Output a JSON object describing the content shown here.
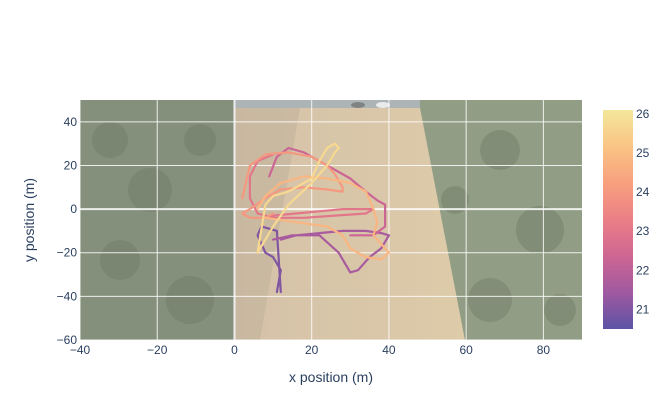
{
  "chart_data": {
    "type": "line",
    "title": "",
    "xlabel": "x position (m)",
    "ylabel": "y position (m)",
    "xlim": [
      -40,
      90
    ],
    "ylim": [
      -60,
      50
    ],
    "xticks": [
      -40,
      -20,
      0,
      20,
      40,
      60,
      80
    ],
    "yticks": [
      40,
      20,
      0,
      -20,
      -40,
      -60
    ],
    "grid": true,
    "background": "aerial photo of a field bordered by trees",
    "colorbar": {
      "ticks": [
        26,
        25,
        24,
        23,
        22,
        21
      ],
      "range": [
        20.5,
        26.1
      ],
      "colors": [
        "#5c53a5",
        "#a059a0",
        "#ce6693",
        "#eb7f86",
        "#f8a07e",
        "#fac484",
        "#f3e79b"
      ],
      "placement": "right"
    },
    "series": [
      {
        "color_value": 21.0,
        "x": [
          11,
          12,
          10,
          8,
          6,
          7,
          9,
          11,
          12
        ],
        "y": [
          -38,
          -28,
          -22,
          -20,
          -12,
          -8,
          -9,
          -10,
          -38
        ]
      },
      {
        "color_value": 21.6,
        "x": [
          12,
          16,
          22,
          28,
          34,
          38,
          40,
          38,
          35,
          32,
          30,
          27,
          22,
          15,
          10
        ],
        "y": [
          -14,
          -12,
          -11,
          -10,
          -10,
          -11,
          -12,
          -18,
          -22,
          -28,
          -29,
          -20,
          -12,
          -12,
          -14
        ]
      },
      {
        "color_value": 22.3,
        "x": [
          9,
          11,
          14,
          18,
          22,
          26,
          30,
          34,
          37,
          39,
          39,
          36,
          30
        ],
        "y": [
          15,
          24,
          28,
          26,
          22,
          18,
          14,
          8,
          4,
          2,
          -8,
          -12,
          -12
        ]
      },
      {
        "color_value": 23.0,
        "x": [
          8,
          10,
          16,
          22,
          28,
          34,
          36,
          34,
          26,
          18,
          10,
          6,
          4,
          4,
          6,
          10
        ],
        "y": [
          -4,
          -3,
          -2,
          -1,
          0,
          0,
          0,
          -2,
          -3,
          -4,
          -4,
          -2,
          5,
          15,
          22,
          25
        ]
      },
      {
        "color_value": 24.0,
        "x": [
          2,
          4,
          8,
          14,
          20,
          24,
          26,
          28,
          28,
          24,
          18,
          12,
          8,
          4,
          2,
          4,
          8,
          10
        ],
        "y": [
          5,
          20,
          25,
          26,
          24,
          20,
          16,
          10,
          8,
          9,
          10,
          9,
          5,
          0,
          -2,
          -4,
          -4,
          -2
        ]
      },
      {
        "color_value": 24.8,
        "x": [
          6,
          8,
          12,
          18,
          24,
          30,
          34,
          36,
          37,
          36,
          38,
          40,
          38,
          34,
          30,
          28,
          24,
          16,
          8
        ],
        "y": [
          0,
          6,
          12,
          15,
          14,
          12,
          8,
          0,
          -6,
          -12,
          -16,
          -20,
          -23,
          -22,
          -18,
          -12,
          -8,
          -6,
          -4
        ]
      },
      {
        "color_value": 25.7,
        "x": [
          6,
          8,
          10,
          14,
          20,
          24,
          26,
          27,
          26,
          24,
          22,
          20,
          14,
          10,
          8,
          6
        ],
        "y": [
          -20,
          -14,
          -8,
          2,
          12,
          20,
          26,
          28,
          30,
          28,
          22,
          14,
          8,
          6,
          2,
          -20
        ]
      }
    ]
  }
}
